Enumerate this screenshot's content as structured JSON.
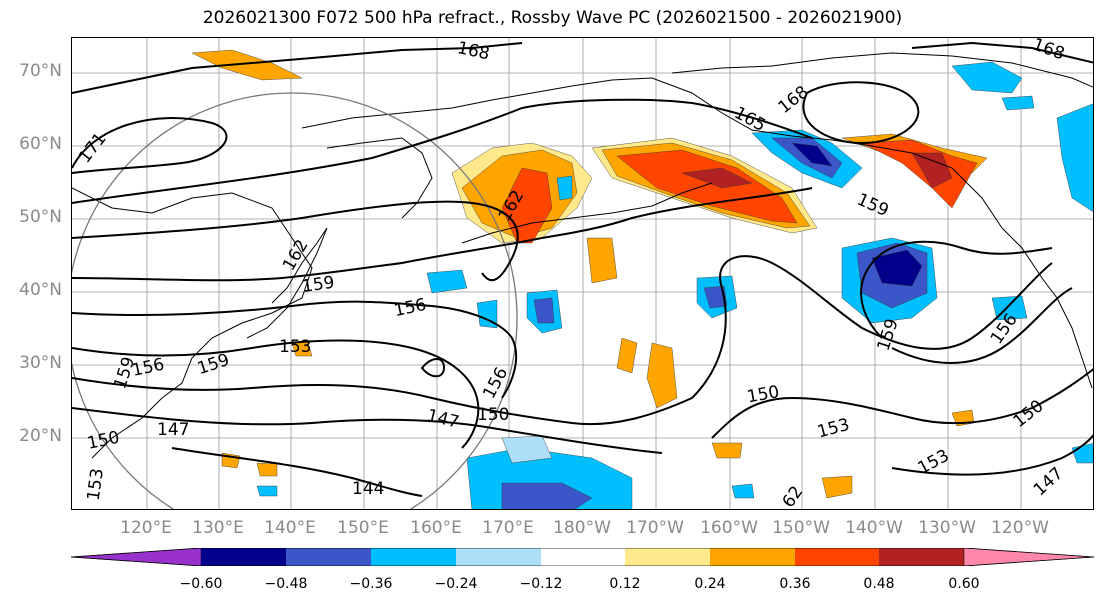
{
  "title": "2026021300 F072 500 hPa refract., Rossby Wave PC (2026021500 - 2026021900)",
  "lat_labels": [
    "70°N",
    "60°N",
    "50°N",
    "40°N",
    "30°N",
    "20°N"
  ],
  "lon_labels": [
    "120°E",
    "130°E",
    "140°E",
    "150°E",
    "160°E",
    "170°E",
    "180°W",
    "170°W",
    "160°W",
    "150°W",
    "140°W",
    "130°W",
    "120°W"
  ],
  "contour_labels": [
    "168",
    "168",
    "168",
    "165",
    "171",
    "162",
    "162",
    "159",
    "159",
    "159",
    "159",
    "156",
    "156",
    "156",
    "156",
    "153",
    "153",
    "153",
    "153",
    "150",
    "150",
    "150",
    "150",
    "147",
    "147",
    "147",
    "144",
    "159",
    "62"
  ],
  "colorbar": {
    "ticks": [
      "−0.60",
      "−0.48",
      "−0.36",
      "−0.24",
      "−0.12",
      "0.12",
      "0.24",
      "0.36",
      "0.48",
      "0.60"
    ],
    "colors": [
      "#9932cc",
      "#00008b",
      "#3a56c8",
      "#00bfff",
      "#ade0f8",
      "#ffffff",
      "#ffe98a",
      "#ffa500",
      "#ff4500",
      "#b22222",
      "#ff88aa"
    ]
  },
  "fills": {
    "blue_dark": "#00008b",
    "blue_mid": "#3a56c8",
    "blue_light": "#00bfff",
    "blue_pale": "#ade0f8",
    "yellow": "#ffe98a",
    "orange": "#ffa500",
    "red": "#ff4500",
    "dark_red": "#b22222"
  }
}
